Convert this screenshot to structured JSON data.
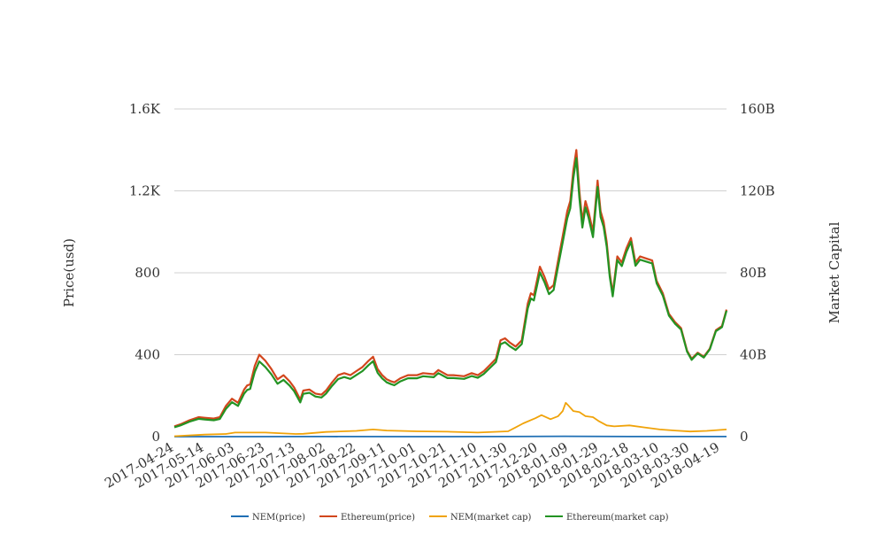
{
  "chart_data": {
    "type": "line",
    "ylabel": "Price(usd)",
    "y2label": "Market Capital",
    "y_ticks": [
      "0",
      "400",
      "800",
      "1.2K",
      "1.6K"
    ],
    "y_tick_values": [
      0,
      400,
      800,
      1200,
      1600
    ],
    "y2_ticks": [
      "0",
      "40B",
      "80B",
      "120B",
      "160B"
    ],
    "y2_tick_values": [
      0,
      40,
      80,
      120,
      160
    ],
    "ylim": [
      0,
      1600
    ],
    "y2lim": [
      0,
      160
    ],
    "y2_unit": "billion USD",
    "x_ticks": [
      "2017-04-24",
      "2017-05-14",
      "2017-06-03",
      "2017-06-23",
      "2017-07-13",
      "2017-08-02",
      "2017-08-22",
      "2017-09-11",
      "2017-10-01",
      "2017-10-21",
      "2017-11-10",
      "2017-11-30",
      "2017-12-20",
      "2018-01-09",
      "2018-01-29",
      "2018-02-18",
      "2018-03-10",
      "2018-03-30",
      "2018-04-19"
    ],
    "xlim": [
      "2017-04-24",
      "2018-04-23"
    ],
    "grid": true,
    "legend_position": "bottom",
    "series": [
      {
        "name": "NEM(price)",
        "axis": "left",
        "color": "#1f6fb4",
        "x": [
          "2017-04-24",
          "2017-06-03",
          "2017-08-02",
          "2017-10-01",
          "2017-11-30",
          "2018-01-07",
          "2018-02-18",
          "2018-04-23"
        ],
        "values": [
          0.03,
          0.2,
          0.25,
          0.2,
          0.3,
          1.9,
          0.5,
          0.3
        ]
      },
      {
        "name": "Ethereum(price)",
        "axis": "left",
        "color": "#d2461d",
        "x": [
          "2017-04-24",
          "2017-04-28",
          "2017-05-04",
          "2017-05-10",
          "2017-05-14",
          "2017-05-20",
          "2017-05-24",
          "2017-05-28",
          "2017-06-01",
          "2017-06-05",
          "2017-06-09",
          "2017-06-11",
          "2017-06-13",
          "2017-06-16",
          "2017-06-19",
          "2017-06-23",
          "2017-06-27",
          "2017-07-01",
          "2017-07-05",
          "2017-07-09",
          "2017-07-12",
          "2017-07-14",
          "2017-07-16",
          "2017-07-18",
          "2017-07-22",
          "2017-07-26",
          "2017-07-30",
          "2017-08-02",
          "2017-08-06",
          "2017-08-10",
          "2017-08-14",
          "2017-08-18",
          "2017-08-22",
          "2017-08-26",
          "2017-08-30",
          "2017-09-02",
          "2017-09-05",
          "2017-09-08",
          "2017-09-11",
          "2017-09-14",
          "2017-09-16",
          "2017-09-20",
          "2017-09-25",
          "2017-10-01",
          "2017-10-05",
          "2017-10-12",
          "2017-10-15",
          "2017-10-21",
          "2017-10-25",
          "2017-11-01",
          "2017-11-06",
          "2017-11-10",
          "2017-11-14",
          "2017-11-18",
          "2017-11-22",
          "2017-11-25",
          "2017-11-28",
          "2017-12-01",
          "2017-12-05",
          "2017-12-09",
          "2017-12-13",
          "2017-12-15",
          "2017-12-17",
          "2017-12-21",
          "2017-12-24",
          "2017-12-27",
          "2017-12-30",
          "2018-01-02",
          "2018-01-05",
          "2018-01-08",
          "2018-01-10",
          "2018-01-12",
          "2018-01-14",
          "2018-01-16",
          "2018-01-18",
          "2018-01-20",
          "2018-01-22",
          "2018-01-25",
          "2018-01-28",
          "2018-01-30",
          "2018-02-01",
          "2018-02-03",
          "2018-02-05",
          "2018-02-07",
          "2018-02-10",
          "2018-02-13",
          "2018-02-16",
          "2018-02-19",
          "2018-02-22",
          "2018-02-25",
          "2018-03-01",
          "2018-03-05",
          "2018-03-08",
          "2018-03-12",
          "2018-03-16",
          "2018-03-20",
          "2018-03-24",
          "2018-03-28",
          "2018-03-31",
          "2018-04-04",
          "2018-04-08",
          "2018-04-12",
          "2018-04-16",
          "2018-04-20",
          "2018-04-23"
        ],
        "values": [
          50,
          60,
          80,
          95,
          92,
          88,
          95,
          150,
          185,
          165,
          230,
          250,
          255,
          345,
          400,
          370,
          330,
          280,
          300,
          270,
          240,
          210,
          180,
          225,
          230,
          210,
          205,
          225,
          265,
          300,
          310,
          300,
          320,
          340,
          370,
          390,
          330,
          300,
          280,
          270,
          265,
          285,
          300,
          300,
          310,
          305,
          325,
          300,
          300,
          295,
          310,
          300,
          320,
          350,
          380,
          470,
          480,
          460,
          440,
          470,
          650,
          700,
          690,
          830,
          780,
          720,
          740,
          860,
          980,
          1100,
          1150,
          1300,
          1400,
          1200,
          1050,
          1150,
          1100,
          1000,
          1250,
          1100,
          1050,
          950,
          800,
          700,
          880,
          850,
          920,
          970,
          850,
          880,
          870,
          860,
          760,
          700,
          600,
          560,
          530,
          420,
          380,
          410,
          390,
          430,
          520,
          540,
          620
        ]
      },
      {
        "name": "NEM(market cap)",
        "axis": "right",
        "color": "#f0a30a",
        "x": [
          "2017-04-24",
          "2017-05-14",
          "2017-05-28",
          "2017-06-03",
          "2017-06-23",
          "2017-07-13",
          "2017-07-18",
          "2017-08-02",
          "2017-08-22",
          "2017-09-02",
          "2017-09-11",
          "2017-10-01",
          "2017-10-21",
          "2017-11-10",
          "2017-11-30",
          "2017-12-05",
          "2017-12-10",
          "2017-12-18",
          "2017-12-22",
          "2017-12-28",
          "2018-01-02",
          "2018-01-05",
          "2018-01-07",
          "2018-01-09",
          "2018-01-12",
          "2018-01-16",
          "2018-01-20",
          "2018-01-25",
          "2018-01-29",
          "2018-02-03",
          "2018-02-08",
          "2018-02-18",
          "2018-02-28",
          "2018-03-10",
          "2018-03-20",
          "2018-03-30",
          "2018-04-10",
          "2018-04-23"
        ],
        "values": [
          0.2,
          1.0,
          1.3,
          2.0,
          2.0,
          1.3,
          1.4,
          2.3,
          2.8,
          3.5,
          3.0,
          2.6,
          2.4,
          2.0,
          2.6,
          4.5,
          6.5,
          9.0,
          10.5,
          8.5,
          10.0,
          12.5,
          16.5,
          15.0,
          12.5,
          12.0,
          10.0,
          9.5,
          7.5,
          5.5,
          5.0,
          5.5,
          4.5,
          3.5,
          3.0,
          2.5,
          2.8,
          3.5
        ]
      },
      {
        "name": "Ethereum(market cap)",
        "axis": "right",
        "color": "#239323",
        "x": [
          "2017-04-24",
          "2017-04-28",
          "2017-05-04",
          "2017-05-10",
          "2017-05-14",
          "2017-05-20",
          "2017-05-24",
          "2017-05-28",
          "2017-06-01",
          "2017-06-05",
          "2017-06-09",
          "2017-06-11",
          "2017-06-13",
          "2017-06-16",
          "2017-06-19",
          "2017-06-23",
          "2017-06-27",
          "2017-07-01",
          "2017-07-05",
          "2017-07-09",
          "2017-07-12",
          "2017-07-14",
          "2017-07-16",
          "2017-07-18",
          "2017-07-22",
          "2017-07-26",
          "2017-07-30",
          "2017-08-02",
          "2017-08-06",
          "2017-08-10",
          "2017-08-14",
          "2017-08-18",
          "2017-08-22",
          "2017-08-26",
          "2017-08-30",
          "2017-09-02",
          "2017-09-05",
          "2017-09-08",
          "2017-09-11",
          "2017-09-14",
          "2017-09-16",
          "2017-09-20",
          "2017-09-25",
          "2017-10-01",
          "2017-10-05",
          "2017-10-12",
          "2017-10-15",
          "2017-10-21",
          "2017-10-25",
          "2017-11-01",
          "2017-11-06",
          "2017-11-10",
          "2017-11-14",
          "2017-11-18",
          "2017-11-22",
          "2017-11-25",
          "2017-11-28",
          "2017-12-01",
          "2017-12-05",
          "2017-12-09",
          "2017-12-13",
          "2017-12-15",
          "2017-12-17",
          "2017-12-21",
          "2017-12-24",
          "2017-12-27",
          "2017-12-30",
          "2018-01-02",
          "2018-01-05",
          "2018-01-08",
          "2018-01-10",
          "2018-01-12",
          "2018-01-14",
          "2018-01-16",
          "2018-01-18",
          "2018-01-20",
          "2018-01-22",
          "2018-01-25",
          "2018-01-28",
          "2018-01-30",
          "2018-02-01",
          "2018-02-03",
          "2018-02-05",
          "2018-02-07",
          "2018-02-10",
          "2018-02-13",
          "2018-02-16",
          "2018-02-19",
          "2018-02-22",
          "2018-02-25",
          "2018-03-01",
          "2018-03-05",
          "2018-03-08",
          "2018-03-12",
          "2018-03-16",
          "2018-03-20",
          "2018-03-24",
          "2018-03-28",
          "2018-03-31",
          "2018-04-04",
          "2018-04-08",
          "2018-04-12",
          "2018-04-16",
          "2018-04-20",
          "2018-04-23"
        ],
        "values": [
          4.6,
          5.5,
          7.3,
          8.7,
          8.4,
          8.0,
          8.6,
          13.6,
          16.8,
          15.0,
          21.0,
          22.8,
          23.3,
          31.6,
          36.7,
          34.0,
          30.4,
          25.8,
          27.7,
          24.9,
          22.2,
          19.4,
          16.7,
          20.9,
          21.4,
          19.6,
          19.1,
          21.0,
          24.8,
          28.1,
          29.1,
          28.2,
          30.1,
          32.0,
          34.9,
          36.8,
          31.2,
          28.4,
          26.5,
          25.6,
          25.1,
          27.0,
          28.5,
          28.5,
          29.5,
          29.0,
          31.0,
          28.6,
          28.6,
          28.2,
          29.6,
          28.7,
          30.6,
          33.5,
          36.4,
          45.1,
          46.1,
          44.2,
          42.3,
          45.2,
          62.6,
          67.5,
          66.5,
          80.2,
          75.4,
          69.6,
          71.6,
          83.2,
          94.9,
          106.6,
          111.5,
          126.2,
          136.0,
          116.6,
          102.1,
          111.9,
          107.1,
          97.4,
          121.9,
          107.3,
          102.5,
          92.8,
          78.2,
          68.5,
          86.2,
          83.3,
          90.2,
          95.1,
          83.4,
          86.4,
          85.5,
          84.6,
          74.8,
          68.9,
          59.1,
          55.2,
          52.3,
          41.5,
          37.5,
          40.6,
          38.6,
          42.6,
          51.5,
          53.5,
          61.5
        ]
      }
    ]
  }
}
